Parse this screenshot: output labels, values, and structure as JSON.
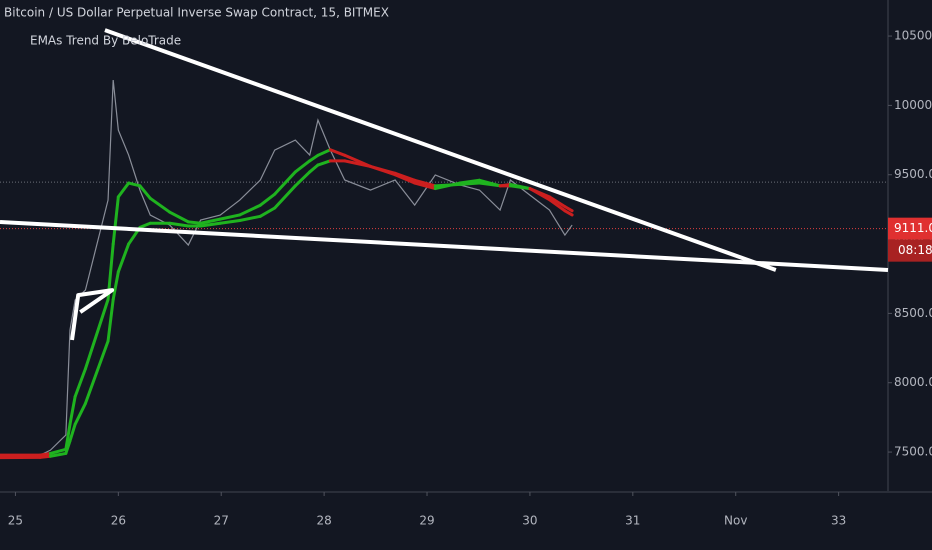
{
  "title": "Bitcoin / US Dollar Perpetual Inverse Swap Contract, 15, BITMEX",
  "indicator": "EMAs Trend By BeloTrade",
  "chart_data": {
    "type": "line",
    "x": [
      24.85,
      25.24,
      25.34,
      25.49,
      25.53,
      25.58,
      25.68,
      25.9,
      25.95,
      26.0,
      26.1,
      26.21,
      26.31,
      26.5,
      26.68,
      26.8,
      26.99,
      27.18,
      27.38,
      27.52,
      27.72,
      27.86,
      27.94,
      28.06,
      28.2,
      28.45,
      28.69,
      28.88,
      29.08,
      29.32,
      29.51,
      29.71,
      29.81,
      30.0,
      30.19,
      30.34,
      30.41
    ],
    "values": [
      7478,
      7478,
      7514,
      7623,
      8380,
      8596,
      8668,
      9317,
      10183,
      9822,
      9642,
      9389,
      9209,
      9137,
      8993,
      9173,
      9209,
      9317,
      9462,
      9678,
      9750,
      9642,
      9894,
      9678,
      9462,
      9389,
      9462,
      9281,
      9498,
      9426,
      9389,
      9245,
      9462,
      9353,
      9245,
      9065,
      9137
    ],
    "color": "#8a8e99",
    "series": [
      {
        "values": [
          7478,
          7478,
          7490,
          7520,
          7700,
          7900,
          8100,
          8600,
          9000,
          9340,
          9440,
          9420,
          9330,
          9230,
          9160,
          9150,
          9180,
          9210,
          9280,
          9360,
          9520,
          9600,
          9640,
          9680,
          9640,
          9560,
          9500,
          9440,
          9400,
          9440,
          9460,
          9420,
          9430,
          9400,
          9320,
          9240,
          9210
        ],
        "colors": [
          "#cc1f1f",
          "#cc1f1f",
          "#1fb31f",
          "#1fb31f",
          "#1fb31f",
          "#1fb31f",
          "#1fb31f",
          "#1fb31f",
          "#1fb31f",
          "#1fb31f",
          "#1fb31f",
          "#1fb31f",
          "#1fb31f",
          "#1fb31f",
          "#1fb31f",
          "#1fb31f",
          "#1fb31f",
          "#1fb31f",
          "#1fb31f",
          "#1fb31f",
          "#1fb31f",
          "#1fb31f",
          "#1fb31f",
          "#cc1f1f",
          "#cc1f1f",
          "#cc1f1f",
          "#cc1f1f",
          "#cc1f1f",
          "#1fb31f",
          "#1fb31f",
          "#1fb31f",
          "#cc1f1f",
          "#1fb31f",
          "#cc1f1f",
          "#cc1f1f",
          "#cc1f1f",
          "#cc1f1f"
        ]
      },
      {
        "values": [
          7460,
          7462,
          7470,
          7490,
          7580,
          7700,
          7850,
          8300,
          8600,
          8800,
          9000,
          9120,
          9150,
          9150,
          9130,
          9130,
          9150,
          9170,
          9200,
          9260,
          9420,
          9520,
          9570,
          9600,
          9600,
          9560,
          9510,
          9460,
          9420,
          9430,
          9440,
          9420,
          9420,
          9400,
          9340,
          9270,
          9240
        ],
        "colors": [
          "#cc1f1f",
          "#cc1f1f",
          "#1fb31f",
          "#1fb31f",
          "#1fb31f",
          "#1fb31f",
          "#1fb31f",
          "#1fb31f",
          "#1fb31f",
          "#1fb31f",
          "#1fb31f",
          "#1fb31f",
          "#1fb31f",
          "#1fb31f",
          "#1fb31f",
          "#1fb31f",
          "#1fb31f",
          "#1fb31f",
          "#1fb31f",
          "#1fb31f",
          "#1fb31f",
          "#1fb31f",
          "#1fb31f",
          "#cc1f1f",
          "#cc1f1f",
          "#cc1f1f",
          "#cc1f1f",
          "#cc1f1f",
          "#1fb31f",
          "#1fb31f",
          "#1fb31f",
          "#cc1f1f",
          "#1fb31f",
          "#cc1f1f",
          "#cc1f1f",
          "#cc1f1f",
          "#cc1f1f"
        ]
      }
    ],
    "trendlines": [
      {
        "x": [
          25.87,
          32.39
        ],
        "y": [
          10543,
          8813
        ]
      },
      {
        "x": [
          24.85,
          33.48
        ],
        "y": [
          9159,
          8813
        ]
      },
      {
        "x": [
          25.55,
          25.61,
          25.94,
          25.63
        ],
        "y": [
          8308,
          8632,
          8668,
          8509
        ]
      }
    ],
    "high_line": 9447,
    "last_price": {
      "value": 9111,
      "label": "9111.0"
    },
    "countdown": "08:18",
    "xlim": [
      24.85,
      33.48
    ],
    "ylim": [
      7212,
      10760
    ],
    "xticks": [
      25,
      26,
      27,
      28,
      29,
      30,
      31,
      {
        "value": 32,
        "label": "Nov"
      },
      33
    ],
    "yticks": [
      {
        "value": 7500,
        "label": "7500.0"
      },
      {
        "value": 8000,
        "label": "8000.0"
      },
      {
        "value": 8500,
        "label": "8500.0"
      },
      {
        "value": 9000,
        "label": "9000.0"
      },
      {
        "value": 9500,
        "label": "9500.0"
      },
      {
        "value": 10000,
        "label": "10000.0"
      },
      {
        "value": 10500,
        "label": "10500.0"
      }
    ],
    "grid": false
  }
}
